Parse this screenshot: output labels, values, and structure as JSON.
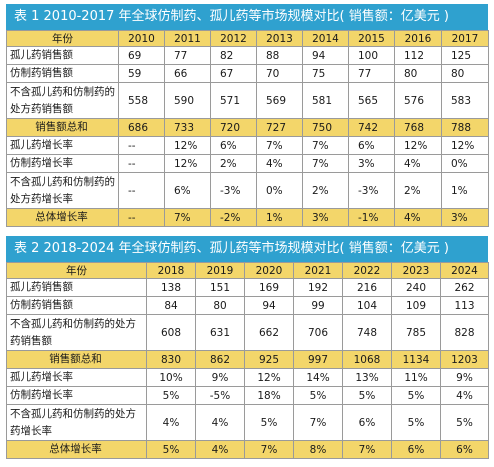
{
  "table1": {
    "title": "表 1   2010-2017 年全球仿制药、孤儿药等市场规模对比( 销售额：亿美元 )",
    "header_label": "年份",
    "years": [
      "2010",
      "2011",
      "2012",
      "2013",
      "2014",
      "2015",
      "2016",
      "2017"
    ],
    "rows": [
      {
        "label": "孤儿药销售额",
        "values": [
          "69",
          "77",
          "82",
          "88",
          "94",
          "100",
          "112",
          "125"
        ]
      },
      {
        "label": "仿制药销售额",
        "values": [
          "59",
          "66",
          "67",
          "70",
          "75",
          "77",
          "80",
          "80"
        ]
      },
      {
        "label": "不含孤儿药和仿制药的处方药销售额",
        "values": [
          "558",
          "590",
          "571",
          "569",
          "581",
          "565",
          "576",
          "583"
        ]
      },
      {
        "label": "销售额总和",
        "values": [
          "686",
          "733",
          "720",
          "727",
          "750",
          "742",
          "768",
          "788"
        ]
      },
      {
        "label": "孤儿药增长率",
        "values": [
          "--",
          "12%",
          "6%",
          "7%",
          "7%",
          "6%",
          "12%",
          "12%"
        ]
      },
      {
        "label": "仿制药增长率",
        "values": [
          "--",
          "12%",
          "2%",
          "4%",
          "7%",
          "3%",
          "4%",
          "0%"
        ]
      },
      {
        "label": "不含孤儿药和仿制药的处方药增长率",
        "values": [
          "--",
          "6%",
          "-3%",
          "0%",
          "2%",
          "-3%",
          "2%",
          "1%"
        ]
      },
      {
        "label": "总体增长率",
        "values": [
          "--",
          "7%",
          "-2%",
          "1%",
          "3%",
          "-1%",
          "4%",
          "3%"
        ]
      }
    ]
  },
  "table2": {
    "title": "表 2   2018-2024 年全球仿制药、孤儿药等市场规模对比( 销售额：亿美元 )",
    "header_label": "年份",
    "years": [
      "2018",
      "2019",
      "2020",
      "2021",
      "2022",
      "2023",
      "2024"
    ],
    "rows": [
      {
        "label": "孤儿药销售额",
        "values": [
          "138",
          "151",
          "169",
          "192",
          "216",
          "240",
          "262"
        ]
      },
      {
        "label": "仿制药销售额",
        "values": [
          "84",
          "80",
          "94",
          "99",
          "104",
          "109",
          "113"
        ]
      },
      {
        "label": "不含孤儿药和仿制药的处方药销售额",
        "values": [
          "608",
          "631",
          "662",
          "706",
          "748",
          "785",
          "828"
        ]
      },
      {
        "label": "销售额总和",
        "values": [
          "830",
          "862",
          "925",
          "997",
          "1068",
          "1134",
          "1203"
        ]
      },
      {
        "label": "孤儿药增长率",
        "values": [
          "10%",
          "9%",
          "12%",
          "14%",
          "13%",
          "11%",
          "9%"
        ]
      },
      {
        "label": "仿制药增长率",
        "values": [
          "5%",
          "-5%",
          "18%",
          "5%",
          "5%",
          "5%",
          "4%"
        ]
      },
      {
        "label": "不含孤儿药和仿制药的处方药增长率",
        "values": [
          "4%",
          "4%",
          "5%",
          "7%",
          "6%",
          "5%",
          "5%"
        ]
      },
      {
        "label": "总体增长率",
        "values": [
          "5%",
          "4%",
          "7%",
          "8%",
          "7%",
          "6%",
          "6%"
        ]
      }
    ]
  },
  "colors": {
    "title_bar": "#2fa1cf",
    "highlight": "#f3d66a",
    "border": "#9a9a9a"
  }
}
